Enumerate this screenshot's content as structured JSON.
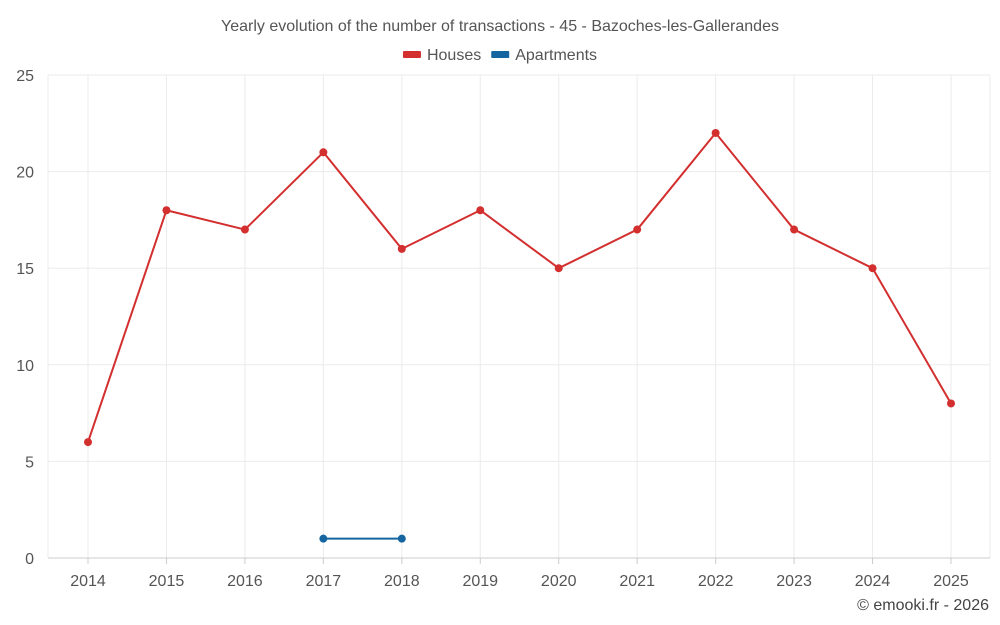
{
  "chart_data": {
    "type": "line",
    "title": "Yearly evolution of the number of transactions - 45 - Bazoches-les-Gallerandes",
    "categories": [
      "2014",
      "2015",
      "2016",
      "2017",
      "2018",
      "2019",
      "2020",
      "2021",
      "2022",
      "2023",
      "2024",
      "2025"
    ],
    "ylim": [
      0,
      25
    ],
    "yticks": [
      0,
      5,
      10,
      15,
      20,
      25
    ],
    "grid": true,
    "legend_position": "top-center",
    "series": [
      {
        "name": "Houses",
        "color": "#d32f2f",
        "values": [
          6,
          18,
          17,
          21,
          16,
          18,
          15,
          17,
          22,
          17,
          15,
          8
        ]
      },
      {
        "name": "Apartments",
        "color": "#1565a0",
        "values": [
          null,
          null,
          null,
          1,
          1,
          null,
          null,
          null,
          null,
          null,
          null,
          null
        ]
      }
    ]
  },
  "credit": "© emooki.fr - 2026"
}
